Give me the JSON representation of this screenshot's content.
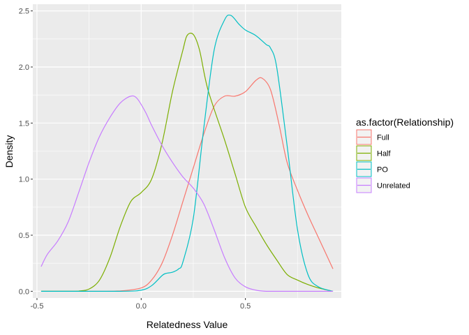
{
  "chart_data": {
    "type": "line",
    "title": "",
    "xlabel": "Relatedness Value",
    "ylabel": "Density",
    "xlim": [
      -0.52,
      0.96
    ],
    "ylim": [
      -0.06,
      2.56
    ],
    "x_ticks": [
      -0.5,
      0,
      0.5
    ],
    "x_tick_labels": [
      "-0.5",
      "0.0",
      "0.5"
    ],
    "y_ticks": [
      0,
      0.5,
      1,
      1.5,
      2,
      2.5
    ],
    "y_tick_labels": [
      "0.0",
      "0.5",
      "1.0",
      "1.5",
      "2.0",
      "2.5"
    ],
    "grid": true,
    "legend": {
      "title": "as.factor(Relationship)",
      "placement": "right"
    },
    "series": [
      {
        "name": "Full",
        "color": "#F8766D",
        "x": [
          -0.48,
          -0.2,
          -0.1,
          0,
          0.05,
          0.1,
          0.15,
          0.2,
          0.25,
          0.3,
          0.35,
          0.4,
          0.45,
          0.5,
          0.55,
          0.58,
          0.62,
          0.66,
          0.7,
          0.75,
          0.8,
          0.85,
          0.92
        ],
        "y": [
          0,
          0,
          0.003,
          0.03,
          0.1,
          0.25,
          0.5,
          0.8,
          1.1,
          1.4,
          1.65,
          1.74,
          1.74,
          1.78,
          1.88,
          1.9,
          1.8,
          1.5,
          1.15,
          0.9,
          0.68,
          0.48,
          0.2
        ]
      },
      {
        "name": "Half",
        "color": "#7CAE00",
        "x": [
          -0.48,
          -0.35,
          -0.3,
          -0.25,
          -0.2,
          -0.15,
          -0.1,
          -0.05,
          0,
          0.05,
          0.1,
          0.15,
          0.2,
          0.22,
          0.25,
          0.28,
          0.32,
          0.4,
          0.45,
          0.5,
          0.55,
          0.6,
          0.65,
          0.7,
          0.75,
          0.8,
          0.85,
          0.92
        ],
        "y": [
          0,
          0,
          0.002,
          0.02,
          0.1,
          0.3,
          0.58,
          0.8,
          0.88,
          1.0,
          1.32,
          1.78,
          2.15,
          2.28,
          2.29,
          2.15,
          1.8,
          1.35,
          1.05,
          0.75,
          0.58,
          0.42,
          0.28,
          0.15,
          0.1,
          0.06,
          0.03,
          0
        ]
      },
      {
        "name": "PO",
        "color": "#00BFC4",
        "x": [
          -0.48,
          -0.1,
          0,
          0.05,
          0.1,
          0.12,
          0.15,
          0.18,
          0.2,
          0.25,
          0.3,
          0.35,
          0.4,
          0.43,
          0.47,
          0.5,
          0.55,
          0.6,
          0.62,
          0.65,
          0.7,
          0.75,
          0.8,
          0.85,
          0.92
        ],
        "y": [
          0,
          0,
          0.01,
          0.05,
          0.14,
          0.16,
          0.17,
          0.2,
          0.26,
          0.65,
          1.45,
          2.15,
          2.42,
          2.46,
          2.38,
          2.33,
          2.28,
          2.2,
          2.17,
          2.0,
          1.3,
          0.55,
          0.15,
          0.04,
          0
        ]
      },
      {
        "name": "Unrelated",
        "color": "#C77CFF",
        "x": [
          -0.48,
          -0.45,
          -0.4,
          -0.35,
          -0.3,
          -0.25,
          -0.2,
          -0.15,
          -0.1,
          -0.05,
          -0.02,
          0.02,
          0.05,
          0.1,
          0.15,
          0.2,
          0.25,
          0.3,
          0.35,
          0.4,
          0.45,
          0.5,
          0.55,
          0.6,
          0.7,
          0.8,
          0.92
        ],
        "y": [
          0.22,
          0.33,
          0.45,
          0.62,
          0.88,
          1.15,
          1.38,
          1.55,
          1.68,
          1.74,
          1.72,
          1.6,
          1.48,
          1.3,
          1.15,
          1.02,
          0.92,
          0.78,
          0.55,
          0.3,
          0.12,
          0.04,
          0.01,
          0,
          0,
          0,
          0
        ]
      }
    ]
  }
}
